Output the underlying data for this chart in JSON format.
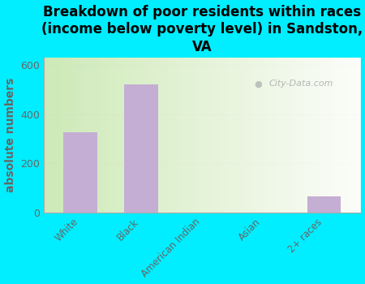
{
  "title": "Breakdown of poor residents within races\n(income below poverty level) in Sandston,\nVA",
  "categories": [
    "White",
    "Black",
    "American Indian",
    "Asian",
    "2+ races"
  ],
  "values": [
    325,
    520,
    0,
    0,
    65
  ],
  "bar_color": "#c4aed4",
  "ylabel": "absolute numbers",
  "ylim": [
    0,
    630
  ],
  "yticks": [
    0,
    200,
    400,
    600
  ],
  "bg_color": "#00eeff",
  "watermark": "City-Data.com",
  "title_fontsize": 12,
  "ylabel_fontsize": 10,
  "bar_width": 0.55,
  "tick_label_color": "#666666",
  "grid_color": "#dddddd"
}
